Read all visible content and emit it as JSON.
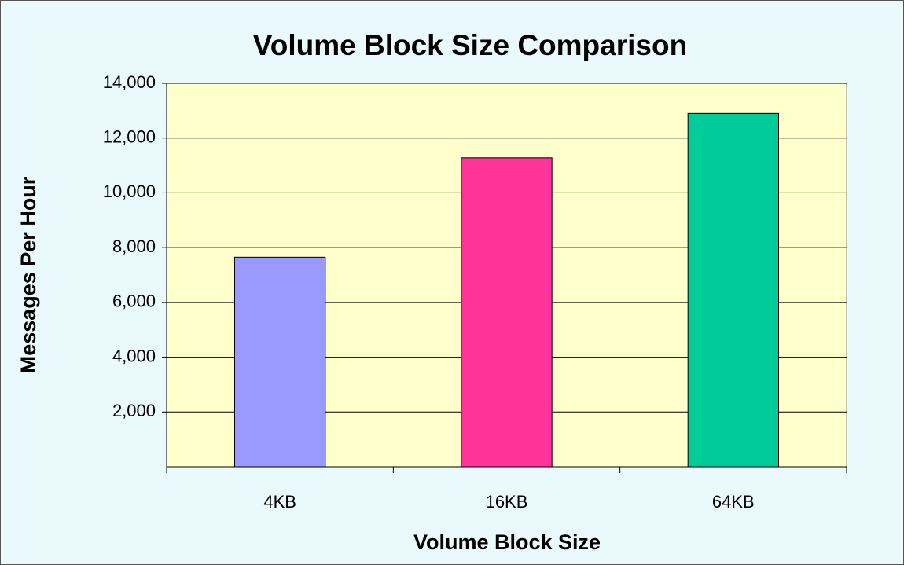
{
  "chart_data": {
    "type": "bar",
    "title": "Volume Block Size Comparison",
    "x_label": "Volume Block Size",
    "y_label": "Messages Per Hour",
    "categories": [
      "4KB",
      "16KB",
      "64KB"
    ],
    "values": [
      7650,
      11280,
      12900
    ],
    "colors": [
      "#9999ff",
      "#ff3399",
      "#00cc99"
    ],
    "ylim": [
      0,
      14000
    ],
    "yticks": [
      {
        "value": 2000,
        "label": "2,000"
      },
      {
        "value": 4000,
        "label": "4,000"
      },
      {
        "value": 6000,
        "label": "6,000"
      },
      {
        "value": 8000,
        "label": "8,000"
      },
      {
        "value": 10000,
        "label": "10,000"
      },
      {
        "value": 12000,
        "label": "12,000"
      },
      {
        "value": 14000,
        "label": "14,000"
      }
    ],
    "grid": true
  }
}
